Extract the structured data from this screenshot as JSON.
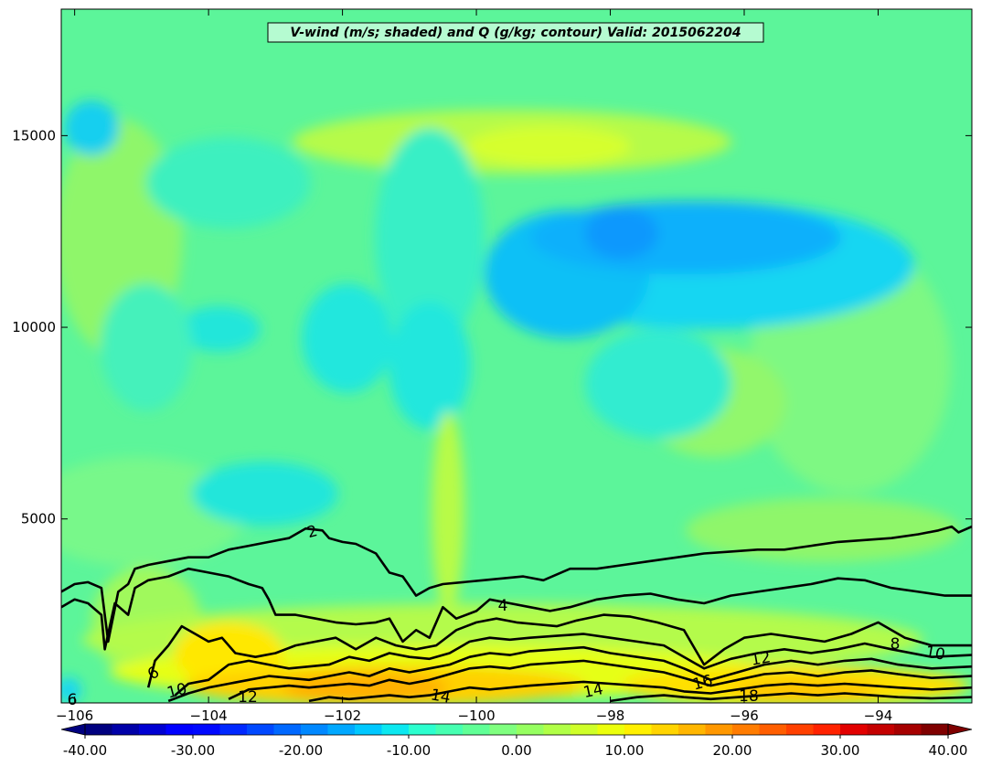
{
  "chart_data": {
    "type": "heatmap",
    "title": "V-wind (m/s; shaded) and Q (g/kg; contour) Valid: 2015062204",
    "xlabel": "",
    "ylabel": "",
    "xlim": [
      -106.2,
      -92.6
    ],
    "ylim": [
      200,
      18300
    ],
    "x_ticks": [
      -106,
      -104,
      -102,
      -100,
      -98,
      -96,
      -94
    ],
    "y_ticks": [
      5000,
      10000,
      15000
    ],
    "colorbar": {
      "min": -40,
      "max": 40,
      "tick_values": [
        -40,
        -30,
        -20,
        -10,
        0,
        10,
        20,
        30,
        40
      ],
      "tick_labels": [
        "-40.00",
        "-30.00",
        "-20.00",
        "-10.00",
        "0.00",
        "10.00",
        "20.00",
        "30.00",
        "40.00"
      ],
      "colors": [
        "#00007f",
        "#0000a8",
        "#0000d2",
        "#0000ff",
        "#0008ff",
        "#0028ff",
        "#0048ff",
        "#0068ff",
        "#0088ff",
        "#00a8ff",
        "#00c8ff",
        "#0ce8f0",
        "#2cffcf",
        "#46ffb1",
        "#60ff96",
        "#7fff7f",
        "#96ff60",
        "#b1ff46",
        "#cfff29",
        "#ecff0c",
        "#fff000",
        "#ffd400",
        "#ffb600",
        "#ff9800",
        "#ff7c00",
        "#ff5e00",
        "#ff4000",
        "#ff2200",
        "#e20000",
        "#c40000",
        "#a60000",
        "#7f0000"
      ]
    },
    "contour_labels": [
      "2",
      "4",
      "6",
      "8",
      "10",
      "10",
      "12",
      "12",
      "14",
      "14",
      "16",
      "18",
      "6"
    ],
    "contours": [
      {
        "level": 2,
        "points": [
          [
            -106.2,
            3100
          ],
          [
            -106.0,
            3300
          ],
          [
            -105.8,
            3350
          ],
          [
            -105.6,
            3200
          ],
          [
            -105.5,
            1800
          ],
          [
            -105.35,
            3100
          ],
          [
            -105.2,
            3300
          ],
          [
            -105.1,
            3700
          ],
          [
            -104.9,
            3800
          ],
          [
            -104.6,
            3900
          ],
          [
            -104.3,
            4000
          ],
          [
            -104.0,
            4000
          ],
          [
            -103.7,
            4200
          ],
          [
            -103.4,
            4300
          ],
          [
            -103.1,
            4400
          ],
          [
            -102.8,
            4500
          ],
          [
            -102.55,
            4750
          ],
          [
            -102.3,
            4700
          ],
          [
            -102.2,
            4500
          ],
          [
            -102.0,
            4400
          ],
          [
            -101.8,
            4350
          ],
          [
            -101.5,
            4100
          ],
          [
            -101.3,
            3600
          ],
          [
            -101.1,
            3500
          ],
          [
            -100.9,
            3000
          ],
          [
            -100.7,
            3200
          ],
          [
            -100.5,
            3300
          ],
          [
            -100.2,
            3350
          ],
          [
            -99.9,
            3400
          ],
          [
            -99.6,
            3450
          ],
          [
            -99.3,
            3500
          ],
          [
            -99.0,
            3400
          ],
          [
            -98.6,
            3700
          ],
          [
            -98.2,
            3700
          ],
          [
            -97.8,
            3800
          ],
          [
            -97.4,
            3900
          ],
          [
            -97.0,
            4000
          ],
          [
            -96.6,
            4100
          ],
          [
            -96.2,
            4150
          ],
          [
            -95.8,
            4200
          ],
          [
            -95.4,
            4200
          ],
          [
            -95.0,
            4300
          ],
          [
            -94.6,
            4400
          ],
          [
            -94.2,
            4450
          ],
          [
            -93.8,
            4500
          ],
          [
            -93.4,
            4600
          ],
          [
            -93.1,
            4700
          ],
          [
            -92.9,
            4800
          ],
          [
            -92.8,
            4650
          ],
          [
            -92.6,
            4800
          ]
        ]
      },
      {
        "level": 4,
        "points": [
          [
            -106.2,
            2700
          ],
          [
            -106.0,
            2900
          ],
          [
            -105.8,
            2800
          ],
          [
            -105.6,
            2500
          ],
          [
            -105.55,
            1600
          ],
          [
            -105.4,
            2800
          ],
          [
            -105.2,
            2500
          ],
          [
            -105.1,
            3200
          ],
          [
            -104.9,
            3400
          ],
          [
            -104.6,
            3500
          ],
          [
            -104.3,
            3700
          ],
          [
            -104.0,
            3600
          ],
          [
            -103.7,
            3500
          ],
          [
            -103.4,
            3300
          ],
          [
            -103.2,
            3200
          ],
          [
            -103.1,
            2900
          ],
          [
            -103.0,
            2500
          ],
          [
            -102.7,
            2500
          ],
          [
            -102.4,
            2400
          ],
          [
            -102.1,
            2300
          ],
          [
            -101.8,
            2250
          ],
          [
            -101.5,
            2300
          ],
          [
            -101.3,
            2400
          ],
          [
            -101.1,
            1800
          ],
          [
            -100.9,
            2100
          ],
          [
            -100.7,
            1900
          ],
          [
            -100.5,
            2700
          ],
          [
            -100.3,
            2400
          ],
          [
            -100.0,
            2600
          ],
          [
            -99.8,
            2900
          ],
          [
            -99.5,
            2800
          ],
          [
            -99.2,
            2700
          ],
          [
            -98.9,
            2600
          ],
          [
            -98.6,
            2700
          ],
          [
            -98.2,
            2900
          ],
          [
            -97.8,
            3000
          ],
          [
            -97.4,
            3050
          ],
          [
            -97.0,
            2900
          ],
          [
            -96.6,
            2800
          ],
          [
            -96.2,
            3000
          ],
          [
            -95.8,
            3100
          ],
          [
            -95.4,
            3200
          ],
          [
            -95.0,
            3300
          ],
          [
            -94.6,
            3450
          ],
          [
            -94.2,
            3400
          ],
          [
            -93.8,
            3200
          ],
          [
            -93.4,
            3100
          ],
          [
            -93.0,
            3000
          ],
          [
            -92.6,
            3000
          ]
        ]
      },
      {
        "level": 6,
        "points": [
          [
            -104.9,
            600
          ],
          [
            -104.8,
            1300
          ],
          [
            -104.6,
            1700
          ],
          [
            -104.4,
            2200
          ],
          [
            -104.2,
            2000
          ],
          [
            -104.0,
            1800
          ],
          [
            -103.8,
            1900
          ],
          [
            -103.6,
            1500
          ],
          [
            -103.3,
            1400
          ],
          [
            -103.0,
            1500
          ],
          [
            -102.7,
            1700
          ],
          [
            -102.4,
            1800
          ],
          [
            -102.1,
            1900
          ],
          [
            -101.8,
            1600
          ],
          [
            -101.5,
            1900
          ],
          [
            -101.2,
            1700
          ],
          [
            -100.9,
            1600
          ],
          [
            -100.6,
            1700
          ],
          [
            -100.3,
            2100
          ],
          [
            -100.0,
            2300
          ],
          [
            -99.7,
            2400
          ],
          [
            -99.4,
            2300
          ],
          [
            -99.1,
            2250
          ],
          [
            -98.8,
            2200
          ],
          [
            -98.5,
            2350
          ],
          [
            -98.1,
            2500
          ],
          [
            -97.7,
            2450
          ],
          [
            -97.3,
            2300
          ],
          [
            -96.9,
            2100
          ],
          [
            -96.6,
            1200
          ],
          [
            -96.3,
            1600
          ],
          [
            -96.0,
            1900
          ],
          [
            -95.6,
            2000
          ],
          [
            -95.2,
            1900
          ],
          [
            -94.8,
            1800
          ],
          [
            -94.4,
            2000
          ],
          [
            -94.0,
            2300
          ],
          [
            -93.6,
            1900
          ],
          [
            -93.2,
            1700
          ],
          [
            -92.6,
            1700
          ]
        ]
      },
      {
        "level": 8,
        "points": [
          [
            -104.5,
            400
          ],
          [
            -104.3,
            700
          ],
          [
            -104.0,
            800
          ],
          [
            -103.7,
            1200
          ],
          [
            -103.4,
            1300
          ],
          [
            -103.1,
            1200
          ],
          [
            -102.8,
            1100
          ],
          [
            -102.5,
            1150
          ],
          [
            -102.2,
            1200
          ],
          [
            -101.9,
            1400
          ],
          [
            -101.6,
            1300
          ],
          [
            -101.3,
            1500
          ],
          [
            -101.0,
            1400
          ],
          [
            -100.7,
            1350
          ],
          [
            -100.4,
            1500
          ],
          [
            -100.1,
            1800
          ],
          [
            -99.8,
            1900
          ],
          [
            -99.5,
            1850
          ],
          [
            -99.2,
            1900
          ],
          [
            -98.8,
            1950
          ],
          [
            -98.4,
            2000
          ],
          [
            -98.0,
            1900
          ],
          [
            -97.6,
            1800
          ],
          [
            -97.2,
            1700
          ],
          [
            -96.9,
            1400
          ],
          [
            -96.6,
            1100
          ],
          [
            -96.2,
            1350
          ],
          [
            -95.8,
            1500
          ],
          [
            -95.4,
            1600
          ],
          [
            -95.0,
            1500
          ],
          [
            -94.6,
            1600
          ],
          [
            -94.2,
            1750
          ],
          [
            -93.8,
            1600
          ],
          [
            -93.2,
            1400
          ],
          [
            -92.6,
            1450
          ]
        ]
      },
      {
        "level": 10,
        "points": [
          [
            -104.6,
            250
          ],
          [
            -104.3,
            450
          ],
          [
            -104.0,
            600
          ],
          [
            -103.7,
            700
          ],
          [
            -103.4,
            800
          ],
          [
            -103.1,
            900
          ],
          [
            -102.8,
            850
          ],
          [
            -102.5,
            800
          ],
          [
            -102.2,
            900
          ],
          [
            -101.9,
            1000
          ],
          [
            -101.6,
            900
          ],
          [
            -101.3,
            1100
          ],
          [
            -101.0,
            1000
          ],
          [
            -100.7,
            1100
          ],
          [
            -100.4,
            1200
          ],
          [
            -100.1,
            1400
          ],
          [
            -99.8,
            1500
          ],
          [
            -99.5,
            1450
          ],
          [
            -99.2,
            1550
          ],
          [
            -98.8,
            1600
          ],
          [
            -98.4,
            1650
          ],
          [
            -98.0,
            1500
          ],
          [
            -97.6,
            1400
          ],
          [
            -97.2,
            1300
          ],
          [
            -96.9,
            1100
          ],
          [
            -96.5,
            800
          ],
          [
            -96.1,
            1000
          ],
          [
            -95.7,
            1200
          ],
          [
            -95.3,
            1300
          ],
          [
            -94.9,
            1200
          ],
          [
            -94.5,
            1300
          ],
          [
            -94.1,
            1350
          ],
          [
            -93.7,
            1200
          ],
          [
            -93.2,
            1100
          ],
          [
            -92.6,
            1150
          ]
        ]
      },
      {
        "level": 12,
        "points": [
          [
            -103.7,
            300
          ],
          [
            -103.4,
            550
          ],
          [
            -103.1,
            600
          ],
          [
            -102.8,
            650
          ],
          [
            -102.5,
            600
          ],
          [
            -102.2,
            650
          ],
          [
            -101.9,
            700
          ],
          [
            -101.6,
            650
          ],
          [
            -101.3,
            800
          ],
          [
            -101.0,
            700
          ],
          [
            -100.7,
            800
          ],
          [
            -100.4,
            950
          ],
          [
            -100.1,
            1100
          ],
          [
            -99.8,
            1150
          ],
          [
            -99.5,
            1100
          ],
          [
            -99.2,
            1200
          ],
          [
            -98.8,
            1250
          ],
          [
            -98.4,
            1300
          ],
          [
            -98.0,
            1200
          ],
          [
            -97.6,
            1100
          ],
          [
            -97.2,
            1000
          ],
          [
            -96.9,
            850
          ],
          [
            -96.5,
            650
          ],
          [
            -96.1,
            800
          ],
          [
            -95.7,
            950
          ],
          [
            -95.3,
            1000
          ],
          [
            -94.9,
            900
          ],
          [
            -94.5,
            1000
          ],
          [
            -94.1,
            1050
          ],
          [
            -93.7,
            950
          ],
          [
            -93.2,
            850
          ],
          [
            -92.6,
            900
          ]
        ]
      },
      {
        "level": 14,
        "points": [
          [
            -102.5,
            250
          ],
          [
            -102.2,
            350
          ],
          [
            -101.9,
            300
          ],
          [
            -101.6,
            350
          ],
          [
            -101.3,
            400
          ],
          [
            -101.0,
            350
          ],
          [
            -100.7,
            400
          ],
          [
            -100.4,
            500
          ],
          [
            -100.1,
            600
          ],
          [
            -99.8,
            550
          ],
          [
            -99.5,
            600
          ],
          [
            -99.2,
            650
          ],
          [
            -98.8,
            700
          ],
          [
            -98.4,
            750
          ],
          [
            -98.0,
            700
          ],
          [
            -97.6,
            650
          ],
          [
            -97.2,
            600
          ],
          [
            -96.9,
            500
          ],
          [
            -96.5,
            450
          ],
          [
            -96.1,
            550
          ],
          [
            -95.7,
            650
          ],
          [
            -95.3,
            700
          ],
          [
            -94.9,
            650
          ],
          [
            -94.5,
            700
          ],
          [
            -94.1,
            650
          ],
          [
            -93.7,
            600
          ],
          [
            -93.2,
            550
          ],
          [
            -92.6,
            600
          ]
        ]
      },
      {
        "level": 16,
        "points": [
          [
            -98.0,
            250
          ],
          [
            -97.6,
            350
          ],
          [
            -97.2,
            400
          ],
          [
            -96.9,
            350
          ],
          [
            -96.5,
            300
          ],
          [
            -96.1,
            350
          ],
          [
            -95.7,
            400
          ],
          [
            -95.3,
            450
          ],
          [
            -94.9,
            400
          ],
          [
            -94.5,
            450
          ],
          [
            -94.1,
            400
          ],
          [
            -93.7,
            350
          ],
          [
            -93.2,
            320
          ],
          [
            -92.6,
            350
          ]
        ]
      }
    ]
  }
}
